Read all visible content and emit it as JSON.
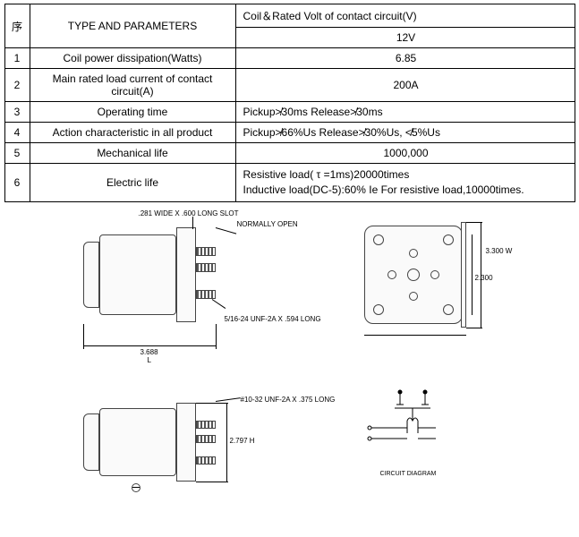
{
  "table": {
    "header_seq": "序",
    "header_param": "TYPE AND PARAMETERS",
    "header_val_top": "Coil＆Rated Volt of contact circuit(V)",
    "header_val_bottom": "12V",
    "rows": [
      {
        "seq": "1",
        "param": "Coil power dissipation(Watts)",
        "val": "6.85",
        "center": true
      },
      {
        "seq": "2",
        "param": "Main rated load current of contact circuit(A)",
        "val": "200A",
        "center": true
      },
      {
        "seq": "3",
        "param": "Operating time",
        "val": "Pickup≯30ms        Release≯30ms",
        "center": false
      },
      {
        "seq": "4",
        "param": "Action characteristic in all product",
        "val": "Pickup≯66%Us       Release≯30%Us, ≮5%Us",
        "center": false
      },
      {
        "seq": "5",
        "param": "Mechanical life",
        "val": "1000,000",
        "center": true
      },
      {
        "seq": "6",
        "param": "Electric life",
        "val": "Resistive load( τ =1ms)20000times\nInductive load(DC-5):60% Ie For resistive load,10000times.",
        "center": false,
        "multiline": true
      }
    ]
  },
  "diagram": {
    "callouts": {
      "slot": ".281 WIDE X .600 LONG SLOT",
      "normally_open": "NORMALLY OPEN",
      "thread1": "5/16-24 UNF-2A X .594 LONG",
      "length": "3.688",
      "length_label": "L",
      "width": "3.300 W",
      "inner_dim": "2.300",
      "thread2": "#10-32 UNF-2A X .375 LONG",
      "height": "2.797 H",
      "circuit": "CIRCUIT DIAGRAM"
    },
    "colors": {
      "line": "#000000",
      "fill": "#fafafa",
      "stroke": "#555555"
    }
  }
}
